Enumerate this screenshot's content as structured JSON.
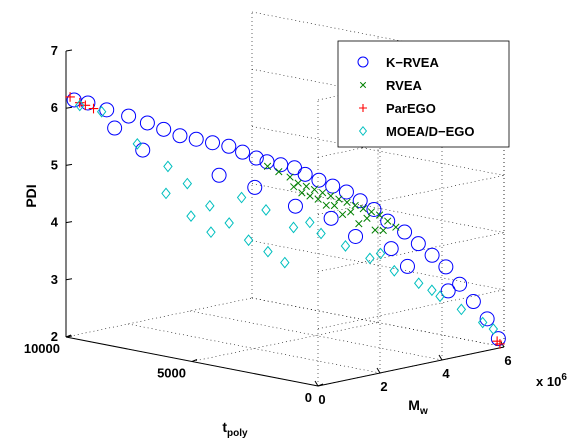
{
  "chart_data": {
    "type": "scatter",
    "dimensions": 3,
    "axes": {
      "x": {
        "label": "t",
        "label_sub": "poly",
        "range": [
          0,
          10000
        ],
        "ticks": [
          0,
          5000,
          10000
        ],
        "tick_labels": [
          "0",
          "5000",
          "10000"
        ]
      },
      "y": {
        "label": "M",
        "label_sub": "w",
        "range": [
          0,
          6
        ],
        "ticks": [
          0,
          2,
          4,
          6
        ],
        "tick_labels": [
          "0",
          "2",
          "4",
          "6"
        ],
        "multiplier_text": "x 10",
        "multiplier_exp": "6"
      },
      "z": {
        "label": "PDI",
        "range": [
          2,
          7
        ],
        "ticks": [
          2,
          3,
          4,
          5,
          6,
          7
        ],
        "tick_labels": [
          "2",
          "3",
          "4",
          "5",
          "6",
          "7"
        ]
      }
    },
    "grid": true,
    "legend": {
      "placement": "top-right"
    },
    "series": [
      {
        "name": "K−RVEA",
        "marker": "circle",
        "color": "#0000ff",
        "points": [
          [
            9800,
            0.1,
            6.15
          ],
          [
            9500,
            0.3,
            6.1
          ],
          [
            9000,
            0.5,
            6.0
          ],
          [
            8500,
            0.8,
            5.9
          ],
          [
            8000,
            1.0,
            5.8
          ],
          [
            7600,
            1.2,
            5.7
          ],
          [
            7200,
            1.4,
            5.6
          ],
          [
            6800,
            1.6,
            5.55
          ],
          [
            6400,
            1.8,
            5.5
          ],
          [
            6000,
            2.0,
            5.45
          ],
          [
            5700,
            2.2,
            5.35
          ],
          [
            5400,
            2.4,
            5.25
          ],
          [
            5100,
            2.5,
            5.2
          ],
          [
            4800,
            2.7,
            5.15
          ],
          [
            4500,
            2.9,
            5.1
          ],
          [
            4200,
            3.0,
            5.0
          ],
          [
            3900,
            3.2,
            4.9
          ],
          [
            3600,
            3.4,
            4.8
          ],
          [
            3300,
            3.6,
            4.7
          ],
          [
            3000,
            3.8,
            4.55
          ],
          [
            2700,
            4.0,
            4.4
          ],
          [
            2400,
            4.2,
            4.2
          ],
          [
            2100,
            4.5,
            4.0
          ],
          [
            1800,
            4.7,
            3.8
          ],
          [
            1500,
            4.9,
            3.6
          ],
          [
            1200,
            5.1,
            3.4
          ],
          [
            900,
            5.3,
            3.1
          ],
          [
            600,
            5.5,
            2.8
          ],
          [
            300,
            5.7,
            2.5
          ],
          [
            100,
            5.9,
            2.15
          ],
          [
            8800,
            1.5,
            5.2
          ],
          [
            7000,
            2.5,
            4.8
          ],
          [
            5200,
            3.5,
            4.3
          ],
          [
            3800,
            4.3,
            3.8
          ],
          [
            2600,
            5.0,
            3.3
          ],
          [
            1600,
            5.5,
            2.9
          ],
          [
            6200,
            3.0,
            4.6
          ],
          [
            4400,
            4.0,
            4.1
          ],
          [
            3000,
            4.8,
            3.6
          ],
          [
            9300,
            1.0,
            5.6
          ]
        ]
      },
      {
        "name": "RVEA",
        "marker": "x",
        "color": "#008000",
        "points": [
          [
            5200,
            2.6,
            5.1
          ],
          [
            5000,
            2.8,
            5.0
          ],
          [
            4800,
            3.0,
            4.9
          ],
          [
            4600,
            3.1,
            4.8
          ],
          [
            4400,
            3.2,
            4.75
          ],
          [
            4200,
            3.3,
            4.7
          ],
          [
            4000,
            3.4,
            4.65
          ],
          [
            3800,
            3.5,
            4.6
          ],
          [
            3600,
            3.6,
            4.55
          ],
          [
            3400,
            3.7,
            4.5
          ],
          [
            3200,
            3.8,
            4.45
          ],
          [
            3000,
            3.9,
            4.4
          ],
          [
            2800,
            4.0,
            4.35
          ],
          [
            2600,
            4.1,
            4.3
          ],
          [
            2400,
            4.2,
            4.2
          ],
          [
            2200,
            4.3,
            4.1
          ],
          [
            4700,
            3.3,
            4.6
          ],
          [
            4300,
            3.5,
            4.5
          ],
          [
            3900,
            3.7,
            4.4
          ],
          [
            3500,
            3.9,
            4.3
          ],
          [
            3100,
            4.1,
            4.2
          ],
          [
            2700,
            4.3,
            4.0
          ],
          [
            4900,
            3.2,
            4.7
          ],
          [
            4100,
            3.6,
            4.4
          ],
          [
            3300,
            4.0,
            4.1
          ],
          [
            2900,
            4.2,
            4.0
          ],
          [
            3700,
            3.8,
            4.25
          ],
          [
            4500,
            3.4,
            4.55
          ]
        ]
      },
      {
        "name": "ParEGO",
        "marker": "plus",
        "color": "#ff0000",
        "points": [
          [
            9900,
            0.05,
            6.2
          ],
          [
            9700,
            0.2,
            6.1
          ],
          [
            9600,
            0.3,
            6.05
          ],
          [
            9400,
            0.4,
            6.0
          ],
          [
            150,
            5.9,
            2.1
          ],
          [
            100,
            5.95,
            2.05
          ]
        ]
      },
      {
        "name": "MOEA/D−EGO",
        "marker": "diamond",
        "color": "#00bfbf",
        "points": [
          [
            9700,
            0.2,
            6.05
          ],
          [
            9200,
            0.5,
            5.95
          ],
          [
            8400,
            1.0,
            5.4
          ],
          [
            7800,
            1.5,
            5.0
          ],
          [
            7400,
            1.8,
            4.7
          ],
          [
            7000,
            2.2,
            4.3
          ],
          [
            6600,
            2.5,
            4.0
          ],
          [
            6200,
            2.8,
            3.7
          ],
          [
            5800,
            3.1,
            3.5
          ],
          [
            5500,
            3.4,
            3.3
          ],
          [
            8000,
            1.6,
            4.5
          ],
          [
            7500,
            2.0,
            4.1
          ],
          [
            7200,
            2.4,
            3.8
          ],
          [
            6000,
            3.2,
            4.2
          ],
          [
            5400,
            3.6,
            3.9
          ],
          [
            4800,
            4.0,
            3.8
          ],
          [
            4200,
            4.3,
            3.6
          ],
          [
            3600,
            4.6,
            3.4
          ],
          [
            3000,
            4.9,
            3.2
          ],
          [
            2400,
            5.2,
            3.0
          ],
          [
            1800,
            5.4,
            2.8
          ],
          [
            1200,
            5.6,
            2.6
          ],
          [
            600,
            5.8,
            2.4
          ],
          [
            300,
            5.9,
            2.3
          ],
          [
            6600,
            2.9,
            4.4
          ],
          [
            5000,
            3.8,
            4.0
          ],
          [
            3300,
            4.7,
            3.5
          ],
          [
            2000,
            5.3,
            2.9
          ]
        ]
      }
    ]
  }
}
